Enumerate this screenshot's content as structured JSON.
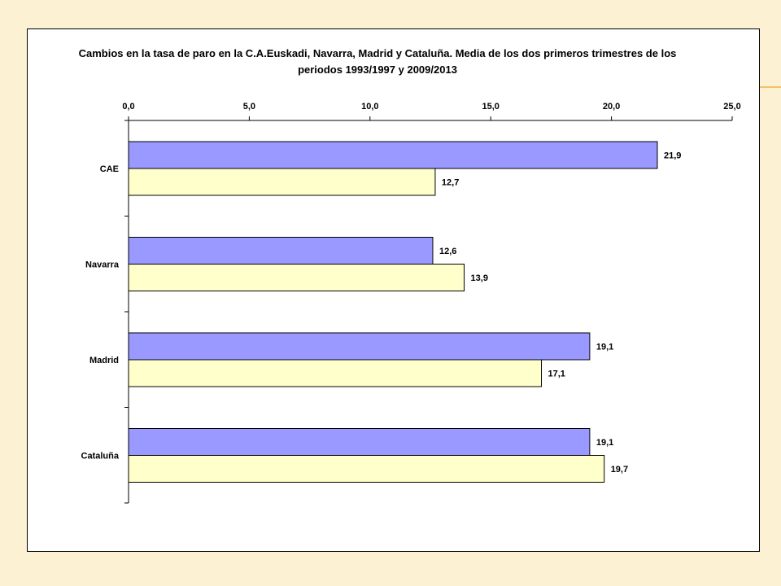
{
  "chart_data": {
    "type": "bar",
    "orientation": "horizontal",
    "title": "Cambios en la tasa de paro en la C.A.Euskadi, Navarra, Madrid y Cataluña. Media de los dos primeros trimestres de los periodos 1993/1997 y 2009/2013",
    "categories": [
      "CAE",
      "Navarra",
      "Madrid",
      "Cataluña"
    ],
    "series": [
      {
        "values": [
          21.9,
          12.6,
          19.1,
          19.1
        ],
        "labels": [
          "21,9",
          "12,6",
          "19,1",
          "19,1"
        ],
        "color": "#9999ff"
      },
      {
        "values": [
          12.7,
          13.9,
          17.1,
          19.7
        ],
        "labels": [
          "12,7",
          "13,9",
          "17,1",
          "19,7"
        ],
        "color": "#ffffcc"
      }
    ],
    "xlim": [
      0,
      25
    ],
    "xticks": [
      0,
      5,
      10,
      15,
      20,
      25
    ],
    "xtick_labels": [
      "0,0",
      "5,0",
      "10,0",
      "15,0",
      "20,0",
      "25,0"
    ],
    "xaxis_position": "top",
    "grid": false,
    "legend": "none"
  },
  "colors": {
    "background": "#fdf1d3",
    "accent_line": "#f5c26b",
    "bar_edge": "#000000"
  }
}
